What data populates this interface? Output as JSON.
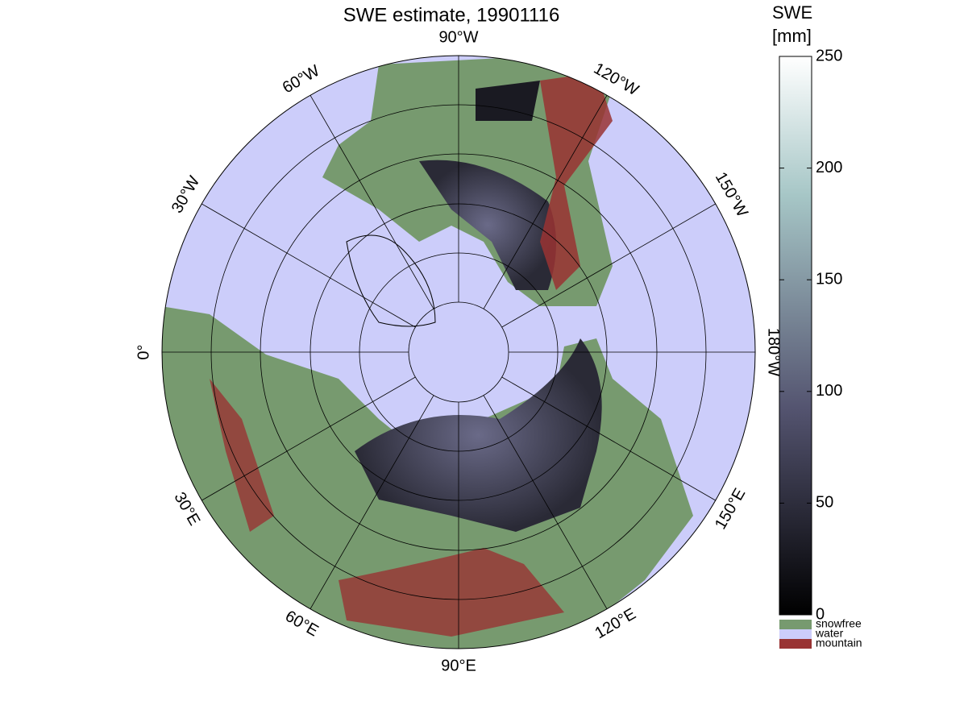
{
  "title": "SWE estimate, 19901116",
  "map": {
    "longitude_labels": [
      "90°W",
      "120°W",
      "150°W",
      "180°W",
      "150°E",
      "120°E",
      "90°E",
      "60°E",
      "30°E",
      "0°",
      "30°W",
      "60°W"
    ]
  },
  "colorbar": {
    "title": [
      "SWE",
      "[mm]"
    ],
    "lim": [
      0,
      250
    ],
    "ticks": [
      0,
      50,
      100,
      150,
      200,
      250
    ],
    "legend": [
      {
        "name": "snowfree",
        "color": "#779a6f"
      },
      {
        "name": "water",
        "color": "#cccdfa"
      },
      {
        "name": "mountain",
        "color": "#993333"
      }
    ]
  }
}
